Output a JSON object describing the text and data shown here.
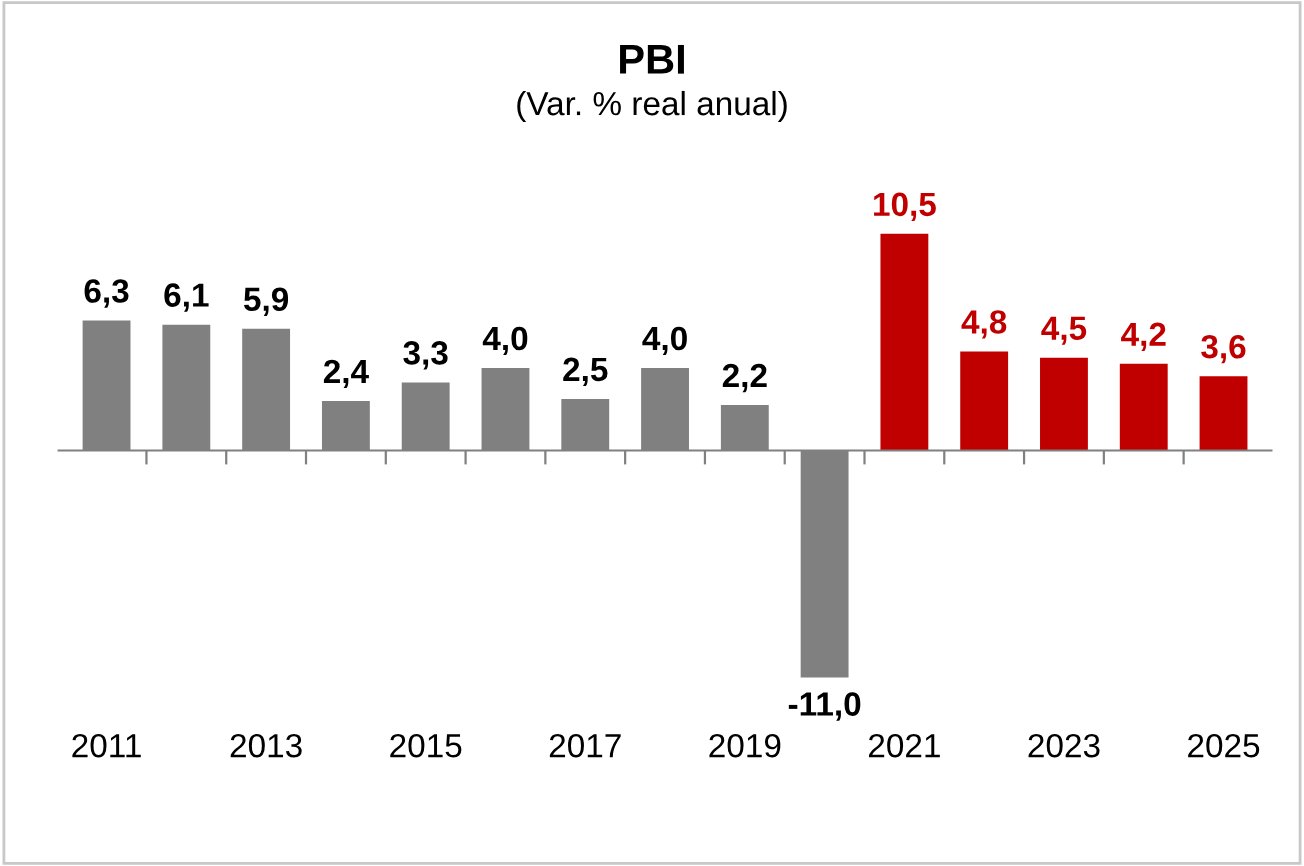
{
  "chart_data": {
    "type": "bar",
    "title": "PBI",
    "subtitle": "(Var. % real anual)",
    "categories": [
      "2011",
      null,
      "2013",
      null,
      "2015",
      null,
      "2017",
      null,
      "2019",
      null,
      "2021",
      null,
      "2023",
      null,
      "2025"
    ],
    "values": [
      6.3,
      6.1,
      5.9,
      2.4,
      3.3,
      4.0,
      2.5,
      4.0,
      2.2,
      -11.0,
      10.5,
      4.8,
      4.5,
      4.2,
      3.6
    ],
    "colors": [
      "#808080",
      "#808080",
      "#808080",
      "#808080",
      "#808080",
      "#808080",
      "#808080",
      "#808080",
      "#808080",
      "#808080",
      "#c00000",
      "#c00000",
      "#c00000",
      "#c00000",
      "#c00000"
    ],
    "value_labels": [
      "6,3",
      "6,1",
      "5,9",
      "2,4",
      "3,3",
      "4,0",
      "2,5",
      "4,0",
      "2,2",
      "-11,0",
      "10,5",
      "4,8",
      "4,5",
      "4,2",
      "3,6"
    ],
    "tick_labels": "x",
    "grid": false,
    "legend": false
  }
}
